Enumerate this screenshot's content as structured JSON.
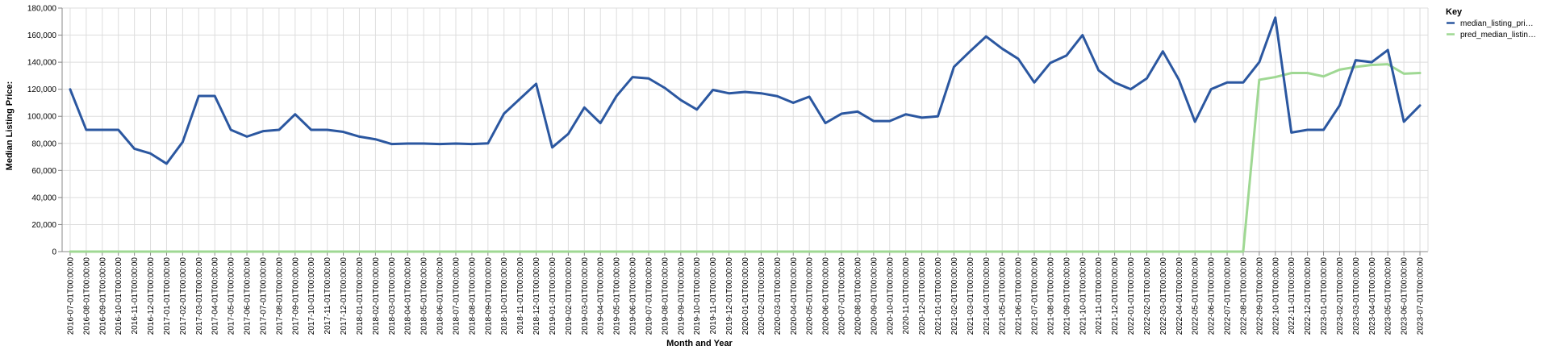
{
  "chart_data": {
    "type": "line",
    "xlabel": "Month and Year",
    "ylabel": "Median Listing Price:",
    "ylim": [
      0,
      180000
    ],
    "yticks": [
      0,
      20000,
      40000,
      60000,
      80000,
      100000,
      120000,
      140000,
      160000,
      180000
    ],
    "ytick_labels": [
      "0",
      "20,000",
      "40,000",
      "60,000",
      "80,000",
      "100,000",
      "120,000",
      "140,000",
      "160,000",
      "180,000"
    ],
    "grid": true,
    "legend_title": "Key",
    "legend_position": "top-right",
    "x": [
      "2016-07-01T00:00:00",
      "2016-08-01T00:00:00",
      "2016-09-01T00:00:00",
      "2016-10-01T00:00:00",
      "2016-11-01T00:00:00",
      "2016-12-01T00:00:00",
      "2017-01-01T00:00:00",
      "2017-02-01T00:00:00",
      "2017-03-01T00:00:00",
      "2017-04-01T00:00:00",
      "2017-05-01T00:00:00",
      "2017-06-01T00:00:00",
      "2017-07-01T00:00:00",
      "2017-08-01T00:00:00",
      "2017-09-01T00:00:00",
      "2017-10-01T00:00:00",
      "2017-11-01T00:00:00",
      "2017-12-01T00:00:00",
      "2018-01-01T00:00:00",
      "2018-02-01T00:00:00",
      "2018-03-01T00:00:00",
      "2018-04-01T00:00:00",
      "2018-05-01T00:00:00",
      "2018-06-01T00:00:00",
      "2018-07-01T00:00:00",
      "2018-08-01T00:00:00",
      "2018-09-01T00:00:00",
      "2018-10-01T00:00:00",
      "2018-11-01T00:00:00",
      "2018-12-01T00:00:00",
      "2019-01-01T00:00:00",
      "2019-02-01T00:00:00",
      "2019-03-01T00:00:00",
      "2019-04-01T00:00:00",
      "2019-05-01T00:00:00",
      "2019-06-01T00:00:00",
      "2019-07-01T00:00:00",
      "2019-08-01T00:00:00",
      "2019-09-01T00:00:00",
      "2019-10-01T00:00:00",
      "2019-11-01T00:00:00",
      "2019-12-01T00:00:00",
      "2020-01-01T00:00:00",
      "2020-02-01T00:00:00",
      "2020-03-01T00:00:00",
      "2020-04-01T00:00:00",
      "2020-05-01T00:00:00",
      "2020-06-01T00:00:00",
      "2020-07-01T00:00:00",
      "2020-08-01T00:00:00",
      "2020-09-01T00:00:00",
      "2020-10-01T00:00:00",
      "2020-11-01T00:00:00",
      "2020-12-01T00:00:00",
      "2021-01-01T00:00:00",
      "2021-02-01T00:00:00",
      "2021-03-01T00:00:00",
      "2021-04-01T00:00:00",
      "2021-05-01T00:00:00",
      "2021-06-01T00:00:00",
      "2021-07-01T00:00:00",
      "2021-08-01T00:00:00",
      "2021-09-01T00:00:00",
      "2021-10-01T00:00:00",
      "2021-11-01T00:00:00",
      "2021-12-01T00:00:00",
      "2022-01-01T00:00:00",
      "2022-02-01T00:00:00",
      "2022-03-01T00:00:00",
      "2022-04-01T00:00:00",
      "2022-05-01T00:00:00",
      "2022-06-01T00:00:00",
      "2022-07-01T00:00:00",
      "2022-08-01T00:00:00",
      "2022-09-01T00:00:00",
      "2022-10-01T00:00:00",
      "2022-11-01T00:00:00",
      "2022-12-01T00:00:00",
      "2023-01-01T00:00:00",
      "2023-02-01T00:00:00",
      "2023-03-01T00:00:00",
      "2023-04-01T00:00:00",
      "2023-05-01T00:00:00",
      "2023-06-01T00:00:00",
      "2023-07-01T00:00:00"
    ],
    "series": [
      {
        "name": "median_listing_pri…",
        "color": "#2b57a0",
        "values": [
          119900,
          90000,
          90000,
          90000,
          76000,
          72500,
          65000,
          81000,
          115000,
          115000,
          90000,
          85000,
          89000,
          90000,
          101500,
          90000,
          90000,
          88500,
          85000,
          83000,
          79500,
          79900,
          79900,
          79500,
          79900,
          79500,
          80000,
          102000,
          113000,
          124000,
          77000,
          87000,
          106500,
          95000,
          115000,
          129000,
          128000,
          121000,
          112000,
          105000,
          119500,
          117000,
          118000,
          117000,
          114900,
          110000,
          114500,
          95000,
          101900,
          103500,
          96500,
          96500,
          101500,
          99000,
          100000,
          136500,
          148000,
          159000,
          150000,
          142500,
          125000,
          139500,
          144900,
          160000,
          134000,
          125000,
          120000,
          128000,
          148000,
          127000,
          96000,
          120000,
          125000,
          125000,
          140000,
          173000,
          88000,
          90000,
          90000,
          108000,
          141500,
          140000,
          149000,
          96000,
          108000
        ]
      },
      {
        "name": "pred_median_listin…",
        "color": "#9fd893",
        "values": [
          0,
          0,
          0,
          0,
          0,
          0,
          0,
          0,
          0,
          0,
          0,
          0,
          0,
          0,
          0,
          0,
          0,
          0,
          0,
          0,
          0,
          0,
          0,
          0,
          0,
          0,
          0,
          0,
          0,
          0,
          0,
          0,
          0,
          0,
          0,
          0,
          0,
          0,
          0,
          0,
          0,
          0,
          0,
          0,
          0,
          0,
          0,
          0,
          0,
          0,
          0,
          0,
          0,
          0,
          0,
          0,
          0,
          0,
          0,
          0,
          0,
          0,
          0,
          0,
          0,
          0,
          0,
          0,
          0,
          0,
          0,
          0,
          0,
          0,
          127000,
          129000,
          132000,
          132000,
          129500,
          134500,
          136500,
          138000,
          138500,
          131500,
          132000
        ]
      }
    ]
  }
}
